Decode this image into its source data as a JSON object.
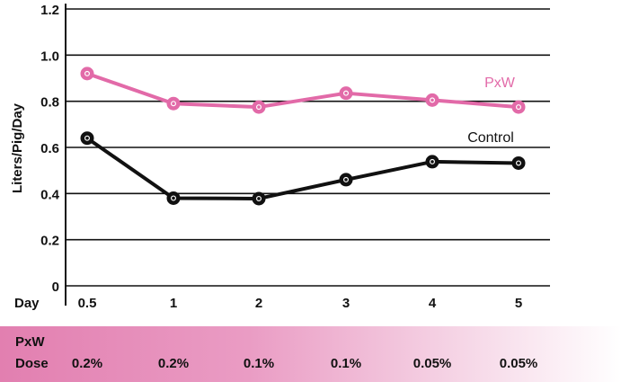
{
  "chart_data": {
    "type": "line",
    "title": "",
    "ylabel": "Liters/Pig/Day",
    "xlabel": "Day",
    "x": [
      "0.5",
      "1",
      "2",
      "3",
      "4",
      "5"
    ],
    "ylim": [
      0,
      1.2
    ],
    "yticks": [
      "0",
      "0.2",
      "0.4",
      "0.6",
      "0.8",
      "1.0",
      "1.2"
    ],
    "grid": "horizontal",
    "series": [
      {
        "name": "PxW",
        "color": "#e26aa8",
        "values": [
          0.92,
          0.79,
          0.775,
          0.835,
          0.805,
          0.775
        ]
      },
      {
        "name": "Control",
        "color": "#111111",
        "values": [
          0.64,
          0.38,
          0.378,
          0.46,
          0.538,
          0.532
        ]
      }
    ]
  },
  "dose": {
    "label_line1": "PxW",
    "label_line2": "Dose",
    "values": [
      "0.2%",
      "0.2%",
      "0.1%",
      "0.1%",
      "0.05%",
      "0.05%"
    ]
  }
}
